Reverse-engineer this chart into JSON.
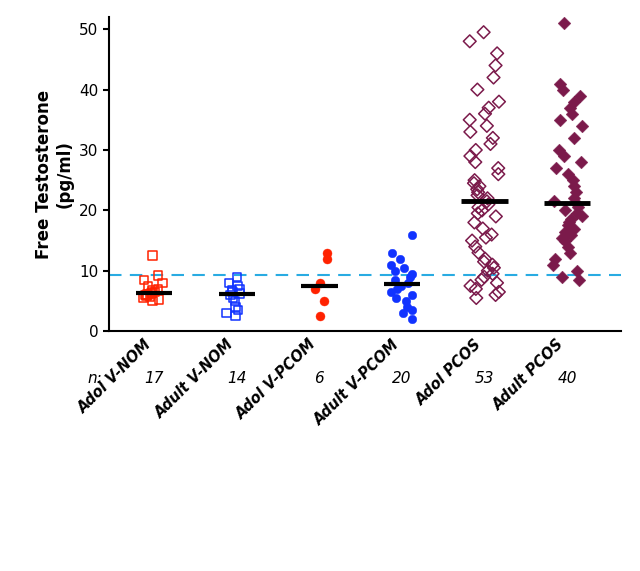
{
  "groups": [
    "Adol V-NOM",
    "Adult V-NOM",
    "Adol V-PCOM",
    "Adult V-PCOM",
    "Adol PCOS",
    "Adult PCOS"
  ],
  "n_values": [
    17,
    14,
    6,
    20,
    53,
    40
  ],
  "reference_line": 9.3,
  "ylabel_line1": "Free Testosterone",
  "ylabel_line2": "(pg/ml)",
  "ylim": [
    0,
    52
  ],
  "yticks": [
    0,
    10,
    20,
    30,
    40,
    50
  ],
  "colors": {
    "nom": "#FF2200",
    "nom_adult": "#1133FF",
    "pcom": "#FF2200",
    "pcom_adult": "#1133FF",
    "pcos": "#7B1A4B"
  },
  "reference_line_color": "#29ABE2",
  "median_bar_color": "#000000",
  "adol_nom": [
    5.0,
    5.2,
    5.5,
    5.7,
    5.9,
    6.0,
    6.1,
    6.2,
    6.4,
    6.5,
    6.7,
    7.0,
    7.5,
    8.0,
    8.5,
    9.2,
    12.5
  ],
  "adult_nom": [
    2.5,
    3.0,
    3.5,
    4.0,
    5.0,
    5.5,
    6.0,
    6.2,
    6.5,
    6.8,
    7.0,
    7.5,
    8.0,
    9.0
  ],
  "adol_pcom": [
    2.5,
    5.0,
    7.0,
    8.0,
    12.0,
    13.0
  ],
  "adult_pcom": [
    2.0,
    3.0,
    3.5,
    4.0,
    5.0,
    5.5,
    6.0,
    6.5,
    7.0,
    7.5,
    8.0,
    8.5,
    9.0,
    9.5,
    10.0,
    10.5,
    11.0,
    12.0,
    13.0,
    16.0
  ],
  "adol_pcos": [
    5.5,
    6.0,
    7.0,
    8.0,
    9.0,
    10.0,
    11.0,
    12.0,
    13.0,
    14.0,
    15.0,
    16.0,
    17.0,
    18.0,
    19.0,
    19.5,
    20.0,
    20.5,
    21.0,
    21.5,
    22.0,
    22.5,
    23.0,
    23.5,
    24.0,
    24.5,
    25.0,
    26.0,
    27.0,
    28.0,
    29.0,
    30.0,
    31.0,
    32.0,
    33.0,
    34.0,
    35.0,
    36.0,
    37.0,
    38.0,
    40.0,
    42.0,
    44.0,
    46.0,
    48.0,
    49.5,
    6.5,
    8.5,
    10.5,
    15.5,
    9.5,
    11.5,
    7.5
  ],
  "adult_pcos": [
    8.5,
    9.0,
    10.0,
    11.0,
    12.0,
    13.0,
    14.0,
    15.0,
    15.5,
    16.0,
    16.5,
    17.0,
    17.5,
    18.0,
    18.5,
    19.0,
    19.5,
    20.0,
    20.5,
    21.0,
    21.5,
    22.0,
    23.0,
    24.0,
    25.0,
    26.0,
    27.0,
    28.0,
    29.0,
    30.0,
    32.0,
    34.0,
    35.0,
    36.0,
    37.0,
    38.0,
    39.0,
    40.0,
    41.0,
    51.0
  ]
}
